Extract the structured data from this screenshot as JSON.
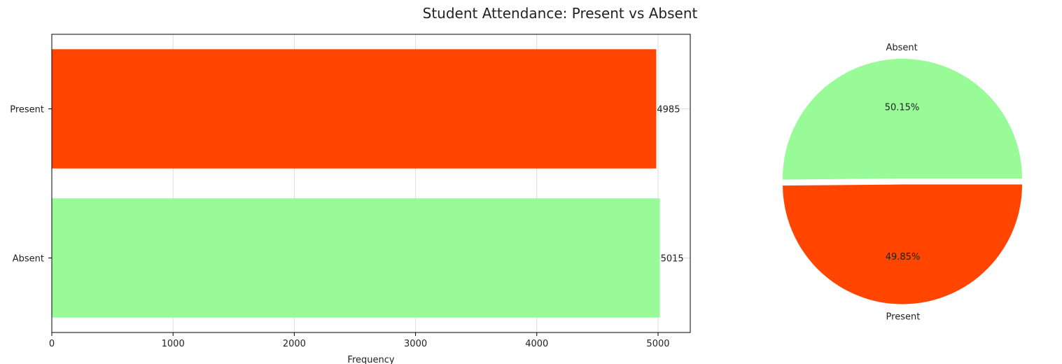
{
  "chart_data": [
    {
      "type": "bar",
      "orientation": "horizontal",
      "title": "Student Attendance: Present vs Absent",
      "categories": [
        "Absent",
        "Present"
      ],
      "values": [
        5015,
        4985
      ],
      "data_labels": [
        "5015",
        "4985"
      ],
      "colors": [
        "#98FB98",
        "#FF4500"
      ],
      "xlabel": "Frequency",
      "ylabel": "",
      "xlim": [
        0,
        5265.75
      ],
      "xticks": [
        0,
        1000,
        2000,
        3000,
        4000,
        5000
      ],
      "xtick_labels": [
        "0",
        "1000",
        "2000",
        "3000",
        "4000",
        "5000"
      ],
      "grid": true
    },
    {
      "type": "pie",
      "labels": [
        "Absent",
        "Present"
      ],
      "values": [
        5015,
        4985
      ],
      "percent_labels": [
        "50.15%",
        "49.85%"
      ],
      "colors": [
        "#98FB98",
        "#FF4500"
      ],
      "explode": [
        0,
        0.05
      ],
      "start_angle": 0,
      "legend": false
    }
  ]
}
